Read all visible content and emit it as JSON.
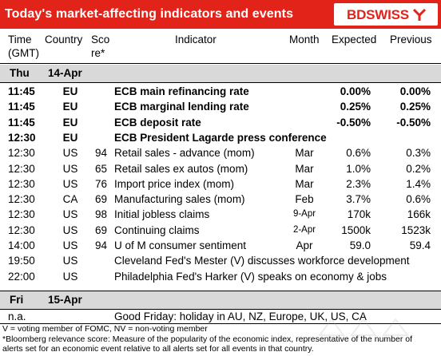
{
  "header": {
    "title": "Today's market-affecting indicators and events",
    "logo_text": "BDSWISS",
    "accent_color": "#e2231a"
  },
  "columns": {
    "time": [
      "Time",
      "(GMT)"
    ],
    "country": "Country",
    "score": [
      "Sco",
      "re*"
    ],
    "indicator": "Indicator",
    "month": "Month",
    "expected": "Expected",
    "previous": "Previous"
  },
  "days": [
    {
      "day": "Thu",
      "date": "14-Apr"
    },
    {
      "day": "Fri",
      "date": "15-Apr"
    }
  ],
  "rows_thu": [
    {
      "time": "11:45",
      "country": "EU",
      "score": "",
      "indicator": "ECB main refinancing rate",
      "month": "",
      "expected": "0.00%",
      "previous": "0.00%",
      "bold": true
    },
    {
      "time": "11:45",
      "country": "EU",
      "score": "",
      "indicator": "ECB marginal lending rate",
      "month": "",
      "expected": "0.25%",
      "previous": "0.25%",
      "bold": true
    },
    {
      "time": "11:45",
      "country": "EU",
      "score": "",
      "indicator": "ECB deposit rate",
      "month": "",
      "expected": "-0.50%",
      "previous": "-0.50%",
      "bold": true
    },
    {
      "time": "12:30",
      "country": "EU",
      "score": "",
      "indicator": "ECB President Lagarde press conference",
      "month": "",
      "expected": "",
      "previous": "",
      "bold": true
    },
    {
      "time": "12:30",
      "country": "US",
      "score": "94",
      "indicator": "Retail sales - advance (mom)",
      "month": "Mar",
      "expected": "0.6%",
      "previous": "0.3%",
      "bold": false
    },
    {
      "time": "12:30",
      "country": "US",
      "score": "65",
      "indicator": "Retail sales ex autos (mom)",
      "month": "Mar",
      "expected": "1.0%",
      "previous": "0.2%",
      "bold": false
    },
    {
      "time": "12:30",
      "country": "US",
      "score": "76",
      "indicator": "Import price index (mom)",
      "month": "Mar",
      "expected": "2.3%",
      "previous": "1.4%",
      "bold": false
    },
    {
      "time": "12:30",
      "country": "CA",
      "score": "69",
      "indicator": "Manufacturing sales (mom)",
      "month": "Feb",
      "expected": "3.7%",
      "previous": "0.6%",
      "bold": false
    },
    {
      "time": "12:30",
      "country": "US",
      "score": "98",
      "indicator": "Initial jobless claims",
      "month": "9-Apr",
      "expected": "170k",
      "previous": "166k",
      "bold": false
    },
    {
      "time": "12:30",
      "country": "US",
      "score": "69",
      "indicator": "Continuing claims",
      "month": "2-Apr",
      "expected": "1500k",
      "previous": "1523k",
      "bold": false
    },
    {
      "time": "14:00",
      "country": "US",
      "score": "94",
      "indicator": "U of M consumer sentiment",
      "month": "Apr",
      "expected": "59.0",
      "previous": "59.4",
      "bold": false
    },
    {
      "time": "19:50",
      "country": "US",
      "score": "",
      "indicator": "Cleveland Fed's Mester (V) discusses workforce development",
      "month": "",
      "expected": "",
      "previous": "",
      "bold": false
    },
    {
      "time": "22:00",
      "country": "US",
      "score": "",
      "indicator": "Philadelphia Fed's Harker (V) speaks on economy & jobs",
      "month": "",
      "expected": "",
      "previous": "",
      "bold": false
    }
  ],
  "rows_fri": [
    {
      "time": "n.a.",
      "country": "",
      "score": "",
      "indicator": "Good Friday: holiday in AU, NZ, Europe, UK, US, CA",
      "month": "",
      "expected": "",
      "previous": "",
      "bold": false
    }
  ],
  "footer": {
    "line1": "V = voting member of FOMC, NV = non-voting member",
    "line2": "*Bloomberg relevance score:  Measure of the popularity of the economic index, representative of the number of",
    "line3": "alerts set for an economic event relative to all alerts set for all events in that country."
  }
}
